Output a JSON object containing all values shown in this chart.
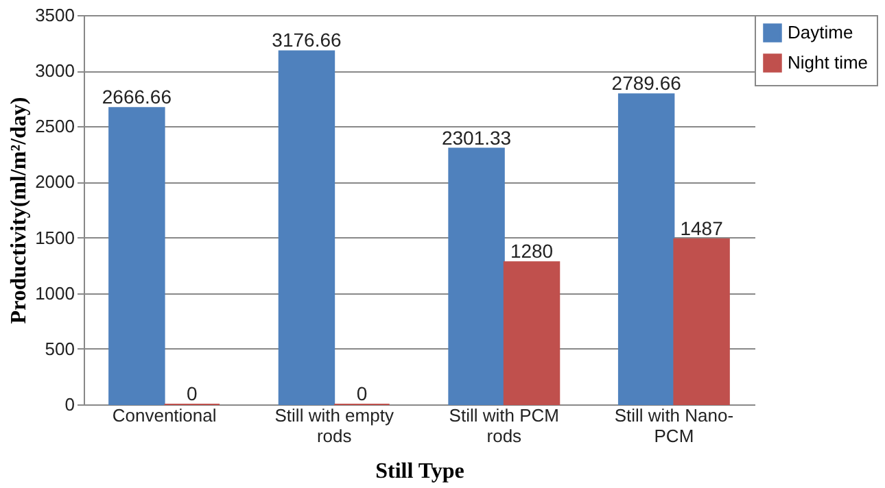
{
  "chart_data": {
    "type": "bar",
    "xlabel": "Still Type",
    "ylabel": "Productivity(ml/m²/day)",
    "categories": [
      "Conventional",
      "Still with empty rods",
      "Still with PCM rods",
      "Still with Nano-PCM"
    ],
    "series": [
      {
        "name": "Daytime",
        "color": "#4f81bd",
        "values": [
          2666.66,
          3176.66,
          2301.33,
          2789.66
        ]
      },
      {
        "name": "Night time",
        "color": "#c0504d",
        "values": [
          0,
          0,
          1280,
          1487
        ]
      }
    ],
    "ylim": [
      0,
      3500
    ],
    "yticks": [
      0,
      500,
      1000,
      1500,
      2000,
      2500,
      3000,
      3500
    ],
    "grid": "y",
    "legend": "top right",
    "data_labels": true
  }
}
